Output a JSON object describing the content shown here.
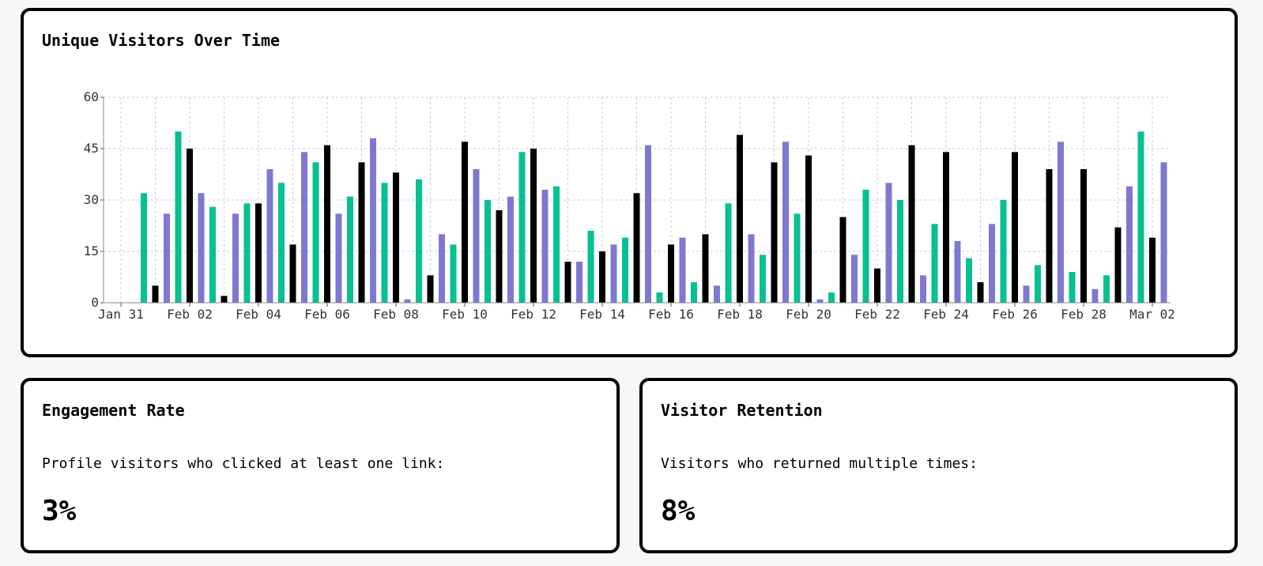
{
  "chart_card": {
    "title": "Unique Visitors Over Time"
  },
  "engagement_card": {
    "title": "Engagement Rate",
    "description": "Profile visitors who clicked at least one link:",
    "value": "3%"
  },
  "retention_card": {
    "title": "Visitor Retention",
    "description": "Visitors who returned multiple times:",
    "value": "8%"
  },
  "colors": {
    "series": [
      "#000000",
      "#7f78d2",
      "#06c092"
    ],
    "grid": "#cccccc",
    "card_border": "#000000",
    "background": "#f6f7f9"
  },
  "chart_data": {
    "type": "bar",
    "title": "Unique Visitors Over Time",
    "xlabel": "",
    "ylabel": "",
    "ylim": [
      0,
      60
    ],
    "grid": true,
    "yticks": [
      "0",
      "15",
      "30",
      "45",
      "60"
    ],
    "xticks": [
      "Jan 31",
      "Feb 02",
      "Feb 04",
      "Feb 06",
      "Feb 08",
      "Feb 10",
      "Feb 12",
      "Feb 14",
      "Feb 16",
      "Feb 18",
      "Feb 20",
      "Feb 22",
      "Feb 24",
      "Feb 26",
      "Feb 28",
      "Mar 02"
    ],
    "start_date": "Jan 31",
    "bar_color_cycle": [
      "#000000",
      "#7f78d2",
      "#06c092"
    ],
    "values": [
      0,
      0,
      32,
      5,
      26,
      50,
      45,
      32,
      28,
      2,
      26,
      29,
      29,
      39,
      35,
      17,
      44,
      41,
      46,
      26,
      31,
      41,
      48,
      35,
      38,
      1,
      36,
      8,
      20,
      17,
      47,
      39,
      30,
      27,
      31,
      44,
      45,
      33,
      34,
      12,
      12,
      21,
      15,
      17,
      19,
      32,
      46,
      3,
      17,
      19,
      6,
      20,
      5,
      29,
      49,
      20,
      14,
      41,
      47,
      26,
      43,
      1,
      3,
      25,
      14,
      33,
      10,
      35,
      30,
      46,
      8,
      23,
      44,
      18,
      13,
      6,
      23,
      30,
      44,
      5,
      11,
      39,
      47,
      9,
      39,
      4,
      8,
      22,
      34,
      50,
      19,
      41
    ]
  }
}
